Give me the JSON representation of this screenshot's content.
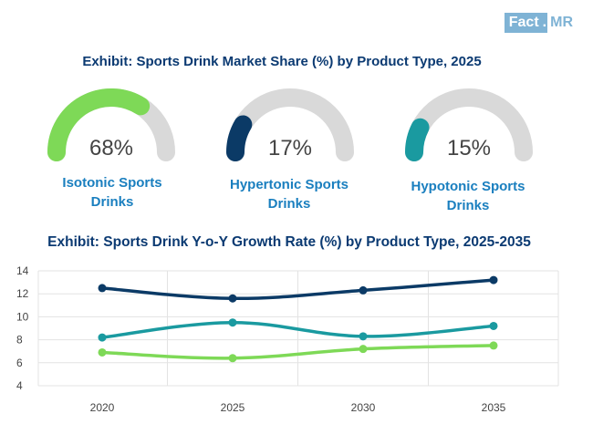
{
  "logo": {
    "part1": "Fact",
    "dot": ".",
    "part2": "MR"
  },
  "title_share": "Exhibit: Sports Drink Market Share (%) by Product Type, 2025",
  "title_growth": "Exhibit: Sports Drink Y-o-Y Growth Rate (%) by Product Type, 2025-2035",
  "colors": {
    "isotonic": "#7ed957",
    "hypertonic": "#0b3a66",
    "hypotonic": "#1a9aa0",
    "track": "#d9d9d9",
    "grid": "#e3e3e3"
  },
  "chart_data": [
    {
      "type": "gauge",
      "title": "Exhibit: Sports Drink Market Share (%) by Product Type, 2025",
      "max": 100,
      "items": [
        {
          "name": "Isotonic Sports Drinks",
          "label_line1": "Isotonic Sports",
          "label_line2": "Drinks",
          "value": 68,
          "display": "68%",
          "color": "#7ed957"
        },
        {
          "name": "Hypertonic Sports Drinks",
          "label_line1": "Hypertonic Sports",
          "label_line2": "Drinks",
          "value": 17,
          "display": "17%",
          "color": "#0b3a66"
        },
        {
          "name": "Hypotonic Sports Drinks",
          "label_line1": "Hypotonic Sports",
          "label_line2": "Drinks",
          "value": 15,
          "display": "15%",
          "color": "#1a9aa0"
        }
      ]
    },
    {
      "type": "line",
      "title": "Exhibit: Sports Drink Y-o-Y Growth Rate (%) by Product Type, 2025-2035",
      "categories": [
        "2020",
        "2025",
        "2030",
        "2035"
      ],
      "y_ticks": [
        "4",
        "6",
        "8",
        "10",
        "12",
        "14"
      ],
      "ylim": [
        4,
        14
      ],
      "grid": true,
      "series": [
        {
          "name": "Hypertonic Sports Drinks",
          "color": "#0b3a66",
          "values": [
            12.5,
            11.6,
            12.3,
            13.2
          ]
        },
        {
          "name": "Hypotonic Sports Drinks",
          "color": "#1a9aa0",
          "values": [
            8.2,
            9.5,
            8.3,
            9.2
          ]
        },
        {
          "name": "Isotonic Sports Drinks",
          "color": "#7ed957",
          "values": [
            6.9,
            6.4,
            7.2,
            7.5
          ]
        }
      ]
    }
  ]
}
